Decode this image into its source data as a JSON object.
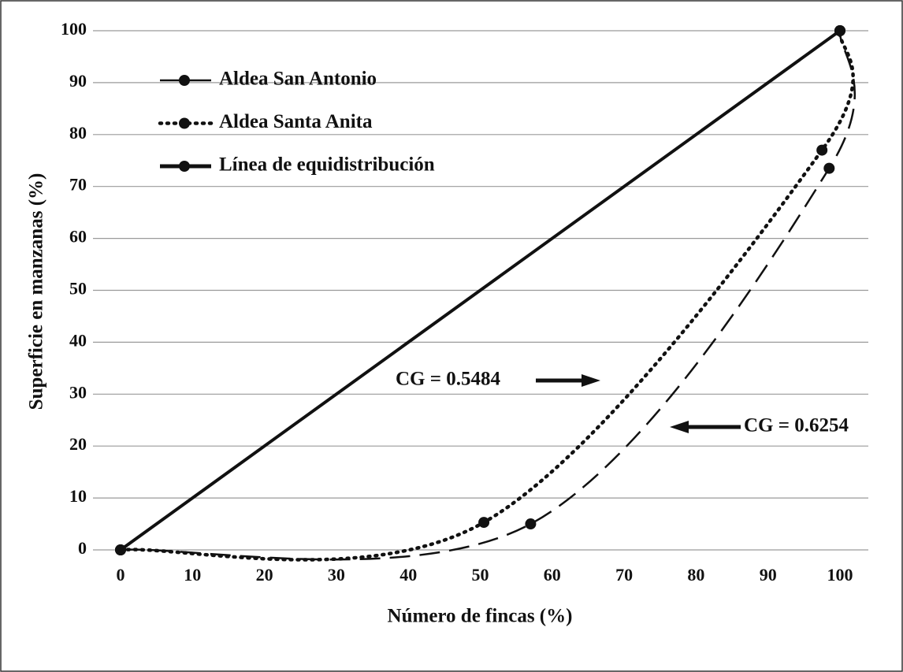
{
  "chart_data": {
    "type": "line",
    "xlabel": "Número de fincas (%)",
    "ylabel": "Superficie en manzanas (%)",
    "xlim": [
      0,
      100
    ],
    "ylim": [
      0,
      100
    ],
    "xticks": [
      0,
      10,
      20,
      30,
      40,
      50,
      60,
      70,
      80,
      90,
      100
    ],
    "yticks": [
      0,
      10,
      20,
      30,
      40,
      50,
      60,
      70,
      80,
      90,
      100
    ],
    "grid": true,
    "legend": "upper left",
    "series": [
      {
        "name": "Aldea San Antonio",
        "color": "#111111",
        "line_style": "dashed",
        "smooth": true,
        "x": [
          0,
          57,
          98.5,
          100
        ],
        "values": [
          0,
          5,
          73.5,
          100
        ]
      },
      {
        "name": "Aldea Santa Anita",
        "color": "#111111",
        "line_style": "dotted",
        "smooth": true,
        "x": [
          0,
          50.5,
          97.5,
          100
        ],
        "values": [
          0,
          5.3,
          77,
          100
        ]
      },
      {
        "name": "Línea de equidistribución",
        "color": "#111111",
        "line_style": "solid",
        "smooth": false,
        "x": [
          0,
          100
        ],
        "values": [
          0,
          100
        ]
      }
    ],
    "annotations": [
      {
        "text": "CG = 0.5484"
      },
      {
        "text": "CG = 0.6254"
      }
    ]
  }
}
